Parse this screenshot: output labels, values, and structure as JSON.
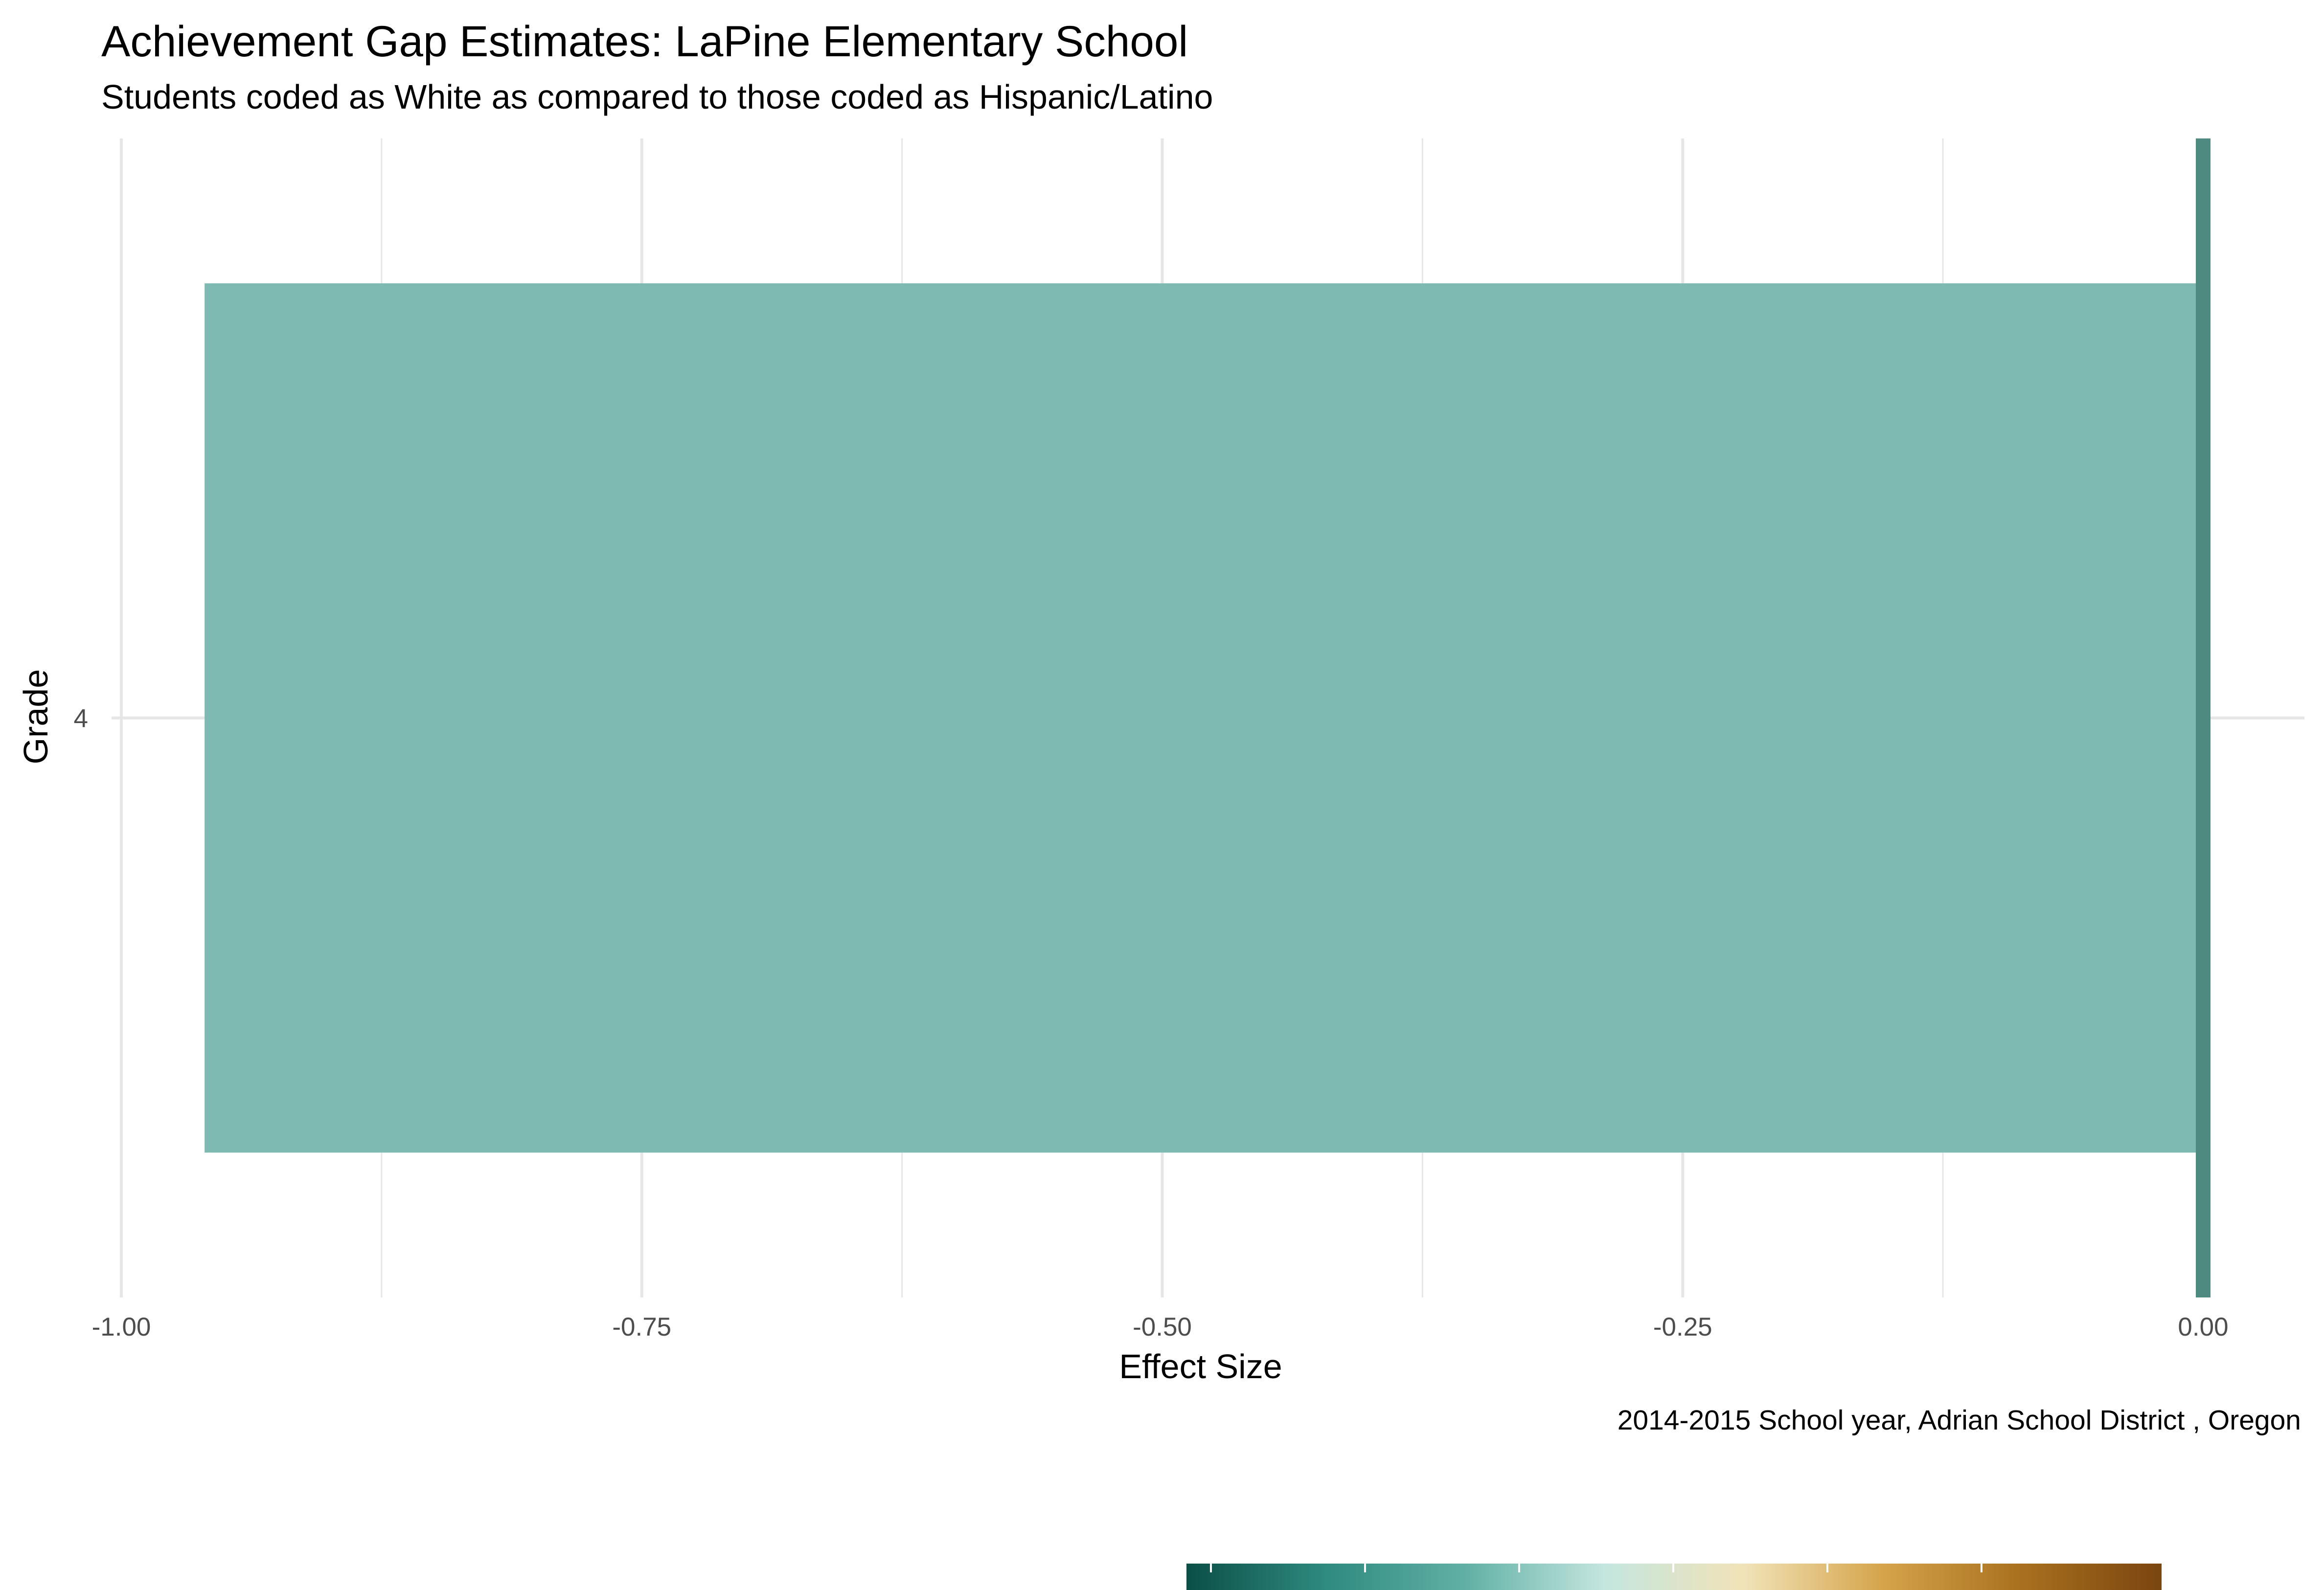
{
  "chart_data": {
    "type": "bar",
    "orientation": "horizontal",
    "title": "Achievement Gap Estimates: LaPine Elementary School",
    "subtitle": "Students coded as White as compared to those coded as Hispanic/Latino",
    "xlabel": "Effect Size",
    "ylabel": "Grade",
    "caption": "2014-2015 School year,  Adrian School District , Oregon",
    "categories": [
      "4"
    ],
    "values": [
      -0.96
    ],
    "xlim": [
      -1.0,
      0.0
    ],
    "x_ticks": [
      -1.0,
      -0.75,
      -0.5,
      -0.25,
      0.0
    ],
    "x_tick_labels": [
      "-1.00",
      "-0.75",
      "-0.50",
      "-0.25",
      "0.00"
    ],
    "reference_line": 0.0,
    "grid": true,
    "legend": "bottom",
    "colors": {
      "bar": "#7fbab2",
      "reference_line": "#4f8a80",
      "gridline": "#e6e6e6",
      "colorbar_stops": [
        "#0b4f47",
        "#2f8a7f",
        "#61b0a5",
        "#c4e6df",
        "#f1e3b8",
        "#d5a44b",
        "#a8701e",
        "#7a4510"
      ]
    }
  }
}
